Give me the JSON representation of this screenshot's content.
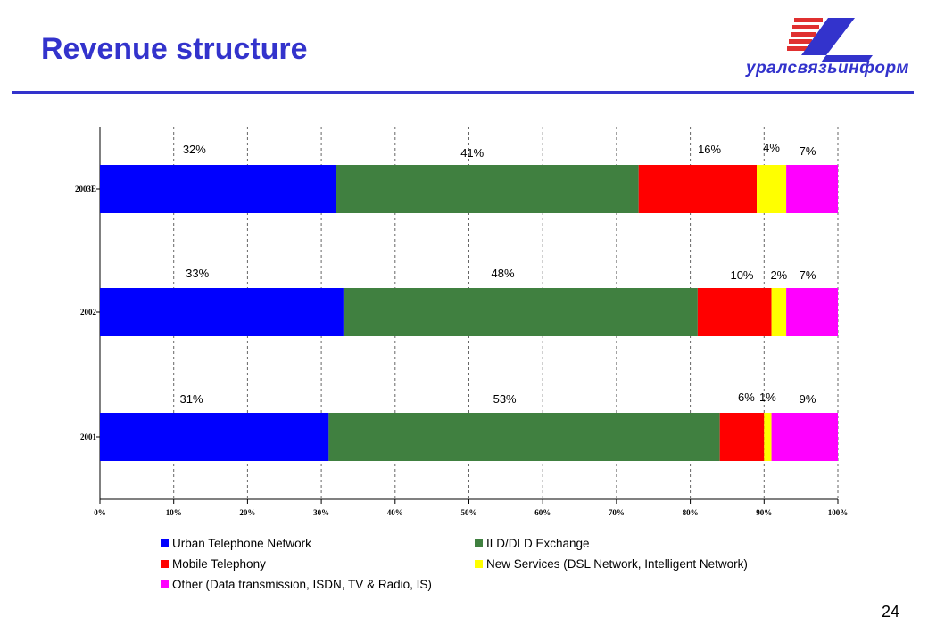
{
  "slide": {
    "title": "Revenue structure",
    "logo_text": "уралсвязьинформ",
    "page_number": "24"
  },
  "colors": {
    "title": "#3333cc",
    "rule": "#3333cc"
  },
  "chart_data": {
    "type": "bar",
    "orientation": "horizontal",
    "stacked": "percent",
    "categories": [
      "2003E",
      "2002",
      "2001"
    ],
    "xlim": [
      0,
      100
    ],
    "x_ticks": [
      "0%",
      "10%",
      "20%",
      "30%",
      "40%",
      "50%",
      "60%",
      "70%",
      "80%",
      "90%",
      "100%"
    ],
    "grid": "vertical dashed",
    "legend_position": "bottom",
    "series": [
      {
        "name": "Urban Telephone Network",
        "color": "#0000ff",
        "values": [
          32,
          33,
          31
        ],
        "labels": [
          "32%",
          "33%",
          "31%"
        ]
      },
      {
        "name": "ILD/DLD Exchange",
        "color": "#408040",
        "values": [
          41,
          48,
          53
        ],
        "labels": [
          "41%",
          "48%",
          "53%"
        ]
      },
      {
        "name": "Mobile Telephony",
        "color": "#ff0000",
        "values": [
          16,
          10,
          6
        ],
        "labels": [
          "16%",
          "10%",
          "6%"
        ]
      },
      {
        "name": "New Services (DSL Network, Intelligent Network)",
        "color": "#ffff00",
        "values": [
          4,
          2,
          1
        ],
        "labels": [
          "4%",
          "2%",
          "1%"
        ]
      },
      {
        "name": "Other (Data transmission, ISDN, TV & Radio, IS)",
        "color": "#ff00ff",
        "values": [
          7,
          7,
          9
        ],
        "labels": [
          "7%",
          "7%",
          "9%"
        ]
      }
    ]
  }
}
